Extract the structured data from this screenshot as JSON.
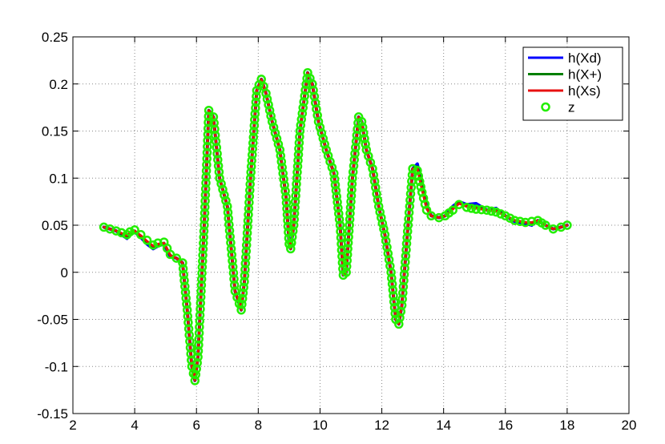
{
  "chart_data": {
    "type": "line",
    "title": "",
    "xlabel": "",
    "ylabel": "",
    "xlim": [
      2,
      20
    ],
    "ylim": [
      -0.15,
      0.25
    ],
    "xticks": [
      2,
      4,
      6,
      8,
      10,
      12,
      14,
      16,
      18,
      20
    ],
    "xtick_labels": [
      "2",
      "4",
      "6",
      "8",
      "10",
      "12",
      "14",
      "16",
      "18",
      "20"
    ],
    "yticks": [
      -0.15,
      -0.1,
      -0.05,
      0,
      0.05,
      0.1,
      0.15,
      0.2,
      0.25
    ],
    "ytick_labels": [
      "-0.15",
      "-0.1",
      "-0.05",
      "0",
      "0.05",
      "0.1",
      "0.15",
      "0.2",
      "0.25"
    ],
    "grid": true,
    "legend_position": "top-right",
    "colors": {
      "h_xd": "#0000ff",
      "h_xplus": "#007f00",
      "h_xs": "#e81010",
      "z": "#22ee00"
    },
    "series": [
      {
        "name": "h(Xd)",
        "style": "line",
        "x": [
          3.0,
          3.4,
          3.75,
          3.85,
          4.0,
          4.2,
          4.4,
          4.6,
          4.75,
          4.95,
          5.15,
          5.35,
          5.55,
          5.7,
          5.85,
          5.95,
          6.05,
          6.25,
          6.4,
          6.55,
          6.75,
          7.0,
          7.25,
          7.45,
          7.55,
          7.75,
          7.95,
          8.1,
          8.25,
          8.45,
          8.7,
          8.9,
          9.0,
          9.05,
          9.15,
          9.35,
          9.6,
          9.75,
          9.95,
          10.2,
          10.45,
          10.65,
          10.75,
          10.85,
          11.05,
          11.25,
          11.35,
          11.5,
          11.7,
          11.9,
          12.1,
          12.3,
          12.45,
          12.55,
          12.65,
          12.85,
          13.0,
          13.15,
          13.3,
          13.45,
          13.6,
          13.85,
          14.05,
          14.3,
          14.5,
          14.75,
          15.05,
          15.4,
          15.7,
          16.0,
          16.3,
          16.65,
          16.85,
          17.05,
          17.3,
          17.55,
          17.8,
          18.0
        ],
        "y": [
          0.048,
          0.044,
          0.036,
          0.041,
          0.043,
          0.037,
          0.03,
          0.025,
          0.028,
          0.03,
          0.017,
          0.015,
          0.01,
          -0.04,
          -0.1,
          -0.115,
          -0.09,
          0.05,
          0.172,
          0.165,
          0.1,
          0.07,
          -0.02,
          -0.04,
          -0.01,
          0.1,
          0.193,
          0.205,
          0.19,
          0.16,
          0.13,
          0.08,
          0.03,
          0.025,
          0.05,
          0.15,
          0.212,
          0.2,
          0.16,
          0.13,
          0.105,
          0.05,
          -0.003,
          0.0,
          0.1,
          0.165,
          0.16,
          0.13,
          0.11,
          0.07,
          0.04,
          0.0,
          -0.05,
          -0.055,
          -0.035,
          0.05,
          0.11,
          0.115,
          0.09,
          0.07,
          0.06,
          0.058,
          0.06,
          0.07,
          0.075,
          0.072,
          0.073,
          0.066,
          0.068,
          0.06,
          0.054,
          0.052,
          0.05,
          0.055,
          0.05,
          0.046,
          0.048,
          0.05
        ]
      },
      {
        "name": "h(X+)",
        "style": "line",
        "x": [
          3.0,
          3.4,
          3.75,
          3.85,
          4.0,
          4.2,
          4.4,
          4.6,
          4.75,
          4.95,
          5.15,
          5.35,
          5.55,
          5.7,
          5.85,
          5.95,
          6.05,
          6.25,
          6.4,
          6.55,
          6.75,
          7.0,
          7.25,
          7.45,
          7.55,
          7.75,
          7.95,
          8.1,
          8.25,
          8.45,
          8.7,
          8.9,
          9.0,
          9.05,
          9.15,
          9.35,
          9.6,
          9.75,
          9.95,
          10.2,
          10.45,
          10.65,
          10.75,
          10.85,
          11.05,
          11.25,
          11.35,
          11.5,
          11.7,
          11.9,
          12.1,
          12.3,
          12.45,
          12.55,
          12.65,
          12.85,
          13.0,
          13.15,
          13.3,
          13.45,
          13.6,
          13.85,
          14.05,
          14.3,
          14.5,
          14.75,
          15.05,
          15.4,
          15.7,
          16.0,
          16.3,
          16.65,
          16.85,
          17.05,
          17.3,
          17.55,
          17.8,
          18.0
        ],
        "y": [
          0.048,
          0.044,
          0.038,
          0.042,
          0.044,
          0.038,
          0.032,
          0.027,
          0.029,
          0.031,
          0.018,
          0.015,
          0.01,
          -0.04,
          -0.1,
          -0.115,
          -0.09,
          0.05,
          0.172,
          0.165,
          0.1,
          0.07,
          -0.02,
          -0.04,
          -0.01,
          0.1,
          0.193,
          0.205,
          0.19,
          0.16,
          0.13,
          0.08,
          0.03,
          0.025,
          0.05,
          0.15,
          0.212,
          0.2,
          0.16,
          0.13,
          0.105,
          0.05,
          -0.003,
          0.0,
          0.1,
          0.165,
          0.16,
          0.13,
          0.11,
          0.07,
          0.04,
          0.0,
          -0.05,
          -0.055,
          -0.035,
          0.05,
          0.11,
          0.112,
          0.09,
          0.068,
          0.06,
          0.058,
          0.06,
          0.068,
          0.074,
          0.07,
          0.069,
          0.066,
          0.066,
          0.06,
          0.055,
          0.053,
          0.052,
          0.055,
          0.05,
          0.046,
          0.048,
          0.05
        ]
      },
      {
        "name": "h(Xs)",
        "style": "line",
        "x": [
          3.0,
          3.4,
          3.75,
          3.85,
          4.0,
          4.2,
          4.4,
          4.6,
          4.75,
          4.95,
          5.15,
          5.35,
          5.55,
          5.7,
          5.85,
          5.95,
          6.05,
          6.25,
          6.4,
          6.55,
          6.75,
          7.0,
          7.25,
          7.45,
          7.55,
          7.75,
          7.95,
          8.1,
          8.25,
          8.45,
          8.7,
          8.9,
          9.0,
          9.05,
          9.15,
          9.35,
          9.6,
          9.75,
          9.95,
          10.2,
          10.45,
          10.65,
          10.75,
          10.85,
          11.05,
          11.25,
          11.35,
          11.5,
          11.7,
          11.9,
          12.1,
          12.3,
          12.45,
          12.55,
          12.65,
          12.85,
          13.0,
          13.15,
          13.3,
          13.45,
          13.6,
          13.85,
          14.05,
          14.3,
          14.5,
          14.75,
          15.05,
          15.4,
          15.7,
          16.0,
          16.3,
          16.65,
          16.85,
          17.05,
          17.3,
          17.55,
          17.8,
          18.0
        ],
        "y": [
          0.048,
          0.044,
          0.039,
          0.042,
          0.044,
          0.039,
          0.033,
          0.028,
          0.03,
          0.031,
          0.018,
          0.015,
          0.01,
          -0.04,
          -0.1,
          -0.115,
          -0.09,
          0.05,
          0.172,
          0.165,
          0.1,
          0.07,
          -0.02,
          -0.04,
          -0.01,
          0.1,
          0.193,
          0.205,
          0.19,
          0.16,
          0.13,
          0.08,
          0.03,
          0.025,
          0.05,
          0.15,
          0.212,
          0.2,
          0.16,
          0.13,
          0.105,
          0.05,
          -0.003,
          0.0,
          0.1,
          0.165,
          0.16,
          0.13,
          0.11,
          0.07,
          0.04,
          0.0,
          -0.05,
          -0.055,
          -0.035,
          0.05,
          0.11,
          0.11,
          0.088,
          0.068,
          0.06,
          0.058,
          0.06,
          0.067,
          0.073,
          0.07,
          0.068,
          0.066,
          0.065,
          0.06,
          0.055,
          0.053,
          0.053,
          0.055,
          0.05,
          0.046,
          0.048,
          0.05
        ]
      },
      {
        "name": "z",
        "style": "marker",
        "x": [
          3.0,
          3.4,
          3.75,
          3.85,
          4.0,
          4.2,
          4.4,
          4.6,
          4.75,
          4.95,
          5.15,
          5.35,
          5.55,
          5.7,
          5.85,
          5.95,
          6.05,
          6.25,
          6.4,
          6.55,
          6.75,
          7.0,
          7.25,
          7.45,
          7.55,
          7.75,
          7.95,
          8.1,
          8.25,
          8.45,
          8.7,
          8.9,
          9.0,
          9.05,
          9.15,
          9.35,
          9.6,
          9.75,
          9.95,
          10.2,
          10.45,
          10.65,
          10.75,
          10.85,
          11.05,
          11.25,
          11.35,
          11.5,
          11.7,
          11.9,
          12.1,
          12.3,
          12.45,
          12.55,
          12.65,
          12.85,
          13.0,
          13.15,
          13.3,
          13.45,
          13.6,
          13.85,
          14.05,
          14.3,
          14.5,
          14.75,
          15.05,
          15.4,
          15.7,
          16.0,
          16.3,
          16.65,
          16.85,
          17.05,
          17.3,
          17.55,
          17.8,
          18.0
        ],
        "y": [
          0.048,
          0.044,
          0.04,
          0.043,
          0.045,
          0.04,
          0.034,
          0.029,
          0.031,
          0.032,
          0.019,
          0.015,
          0.01,
          -0.04,
          -0.1,
          -0.115,
          -0.09,
          0.05,
          0.172,
          0.165,
          0.1,
          0.07,
          -0.02,
          -0.04,
          -0.01,
          0.1,
          0.193,
          0.205,
          0.19,
          0.16,
          0.13,
          0.08,
          0.03,
          0.025,
          0.05,
          0.15,
          0.212,
          0.2,
          0.16,
          0.13,
          0.105,
          0.05,
          -0.003,
          0.0,
          0.1,
          0.165,
          0.16,
          0.13,
          0.11,
          0.07,
          0.04,
          0.0,
          -0.05,
          -0.055,
          -0.035,
          0.05,
          0.11,
          0.108,
          0.085,
          0.066,
          0.06,
          0.058,
          0.06,
          0.066,
          0.072,
          0.069,
          0.067,
          0.066,
          0.064,
          0.06,
          0.055,
          0.053,
          0.054,
          0.055,
          0.05,
          0.046,
          0.048,
          0.05
        ]
      }
    ]
  }
}
